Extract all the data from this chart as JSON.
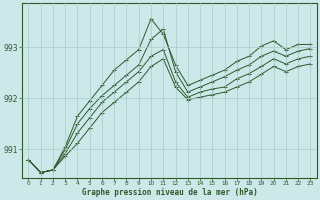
{
  "title": "Graphe pression niveau de la mer (hPa)",
  "background_color": "#cce8e8",
  "grid_color": "#aacccc",
  "line_color": "#2d5a2d",
  "x_ticks": [
    0,
    1,
    2,
    3,
    4,
    5,
    6,
    7,
    8,
    9,
    10,
    11,
    12,
    13,
    14,
    15,
    16,
    17,
    18,
    19,
    20,
    21,
    22,
    23
  ],
  "y_ticks": [
    991,
    992,
    993
  ],
  "ylim": [
    990.45,
    993.85
  ],
  "xlim": [
    -0.5,
    23.5
  ],
  "lines": [
    [
      990.8,
      990.55,
      990.6,
      991.05,
      991.65,
      991.95,
      992.25,
      992.55,
      992.75,
      992.95,
      993.55,
      993.25,
      992.65,
      992.25,
      992.35,
      992.45,
      992.55,
      992.72,
      992.82,
      993.02,
      993.12,
      992.95,
      993.05,
      993.05
    ],
    [
      990.8,
      990.55,
      990.6,
      991.0,
      991.5,
      991.8,
      992.05,
      992.25,
      992.45,
      992.65,
      993.15,
      993.35,
      992.52,
      992.12,
      992.22,
      992.32,
      992.42,
      992.55,
      992.65,
      992.82,
      992.92,
      992.82,
      992.92,
      992.97
    ],
    [
      990.8,
      990.55,
      990.6,
      990.92,
      991.32,
      991.62,
      991.92,
      992.12,
      992.32,
      992.52,
      992.82,
      992.95,
      992.32,
      992.02,
      992.12,
      992.18,
      992.22,
      992.38,
      992.48,
      992.62,
      992.77,
      992.67,
      992.77,
      992.82
    ],
    [
      990.8,
      990.55,
      990.6,
      990.87,
      991.12,
      991.42,
      991.72,
      991.92,
      992.12,
      992.32,
      992.62,
      992.77,
      992.22,
      991.97,
      992.02,
      992.07,
      992.12,
      992.22,
      992.32,
      992.47,
      992.62,
      992.52,
      992.62,
      992.67
    ]
  ],
  "xlabel_fontsize": 5.5,
  "ylabel_fontsize": 5.5,
  "xlabel_fontsize_ticks": 4.2,
  "lw": 0.7,
  "marker_size": 2.5
}
